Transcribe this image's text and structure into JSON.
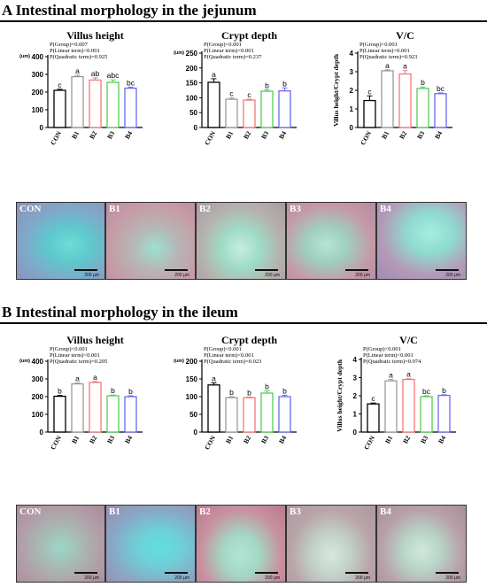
{
  "sections": [
    {
      "title": "A Intestinal morphology in the jejunum",
      "histology": [
        {
          "label": "CON",
          "scale": "200 μm"
        },
        {
          "label": "B1",
          "scale": "200 μm"
        },
        {
          "label": "B2",
          "scale": "200 μm"
        },
        {
          "label": "B3",
          "scale": "200 μm"
        },
        {
          "label": "B4",
          "scale": "200 μm"
        }
      ]
    },
    {
      "title": "B Intestinal morphology in the ileum",
      "histology": [
        {
          "label": "CON",
          "scale": "200 μm"
        },
        {
          "label": "B1",
          "scale": "200 μm"
        },
        {
          "label": "B2",
          "scale": "200 μm"
        },
        {
          "label": "B3",
          "scale": "200 μm"
        },
        {
          "label": "B4",
          "scale": "200 μm"
        }
      ]
    }
  ],
  "colors": {
    "CON": "#000000",
    "B1": "#9a9a9a",
    "B2": "#f07a7a",
    "B3": "#55cc55",
    "B4": "#6a6af0"
  },
  "chart_data": [
    {
      "type": "bar",
      "panel": "jejunum-villus",
      "title": "Villus height",
      "unit": "(um)",
      "ylabel": "",
      "categories": [
        "CON",
        "B1",
        "B2",
        "B3",
        "B4"
      ],
      "values": [
        210,
        287,
        268,
        255,
        222
      ],
      "errors": [
        6,
        8,
        12,
        14,
        6
      ],
      "letters": [
        "c",
        "a",
        "ab",
        "abc",
        "bc"
      ],
      "ylim": [
        0,
        400
      ],
      "yticks": [
        0,
        100,
        200,
        300,
        400
      ],
      "stats": [
        "P(Group)=0.007",
        "P(Linear term)<0.001",
        "P(Quadratic term)=0.925"
      ]
    },
    {
      "type": "bar",
      "panel": "jejunum-crypt",
      "title": "Crypt depth",
      "unit": "(um)",
      "ylabel": "",
      "categories": [
        "CON",
        "B1",
        "B2",
        "B3",
        "B4"
      ],
      "values": [
        152,
        95,
        92,
        122,
        123
      ],
      "errors": [
        12,
        4,
        3,
        5,
        10
      ],
      "letters": [
        "a",
        "c",
        "c",
        "b",
        "b"
      ],
      "ylim": [
        0,
        250
      ],
      "yticks": [
        0,
        50,
        100,
        150,
        200,
        250
      ],
      "stats": [
        "P(Group)<0.001",
        "P(Linear term)<0.001",
        "P(Quadratic term)=0.237"
      ]
    },
    {
      "type": "bar",
      "panel": "jejunum-vc",
      "title": "V/C",
      "unit": "",
      "ylabel": "Villus height/Crypt depth",
      "categories": [
        "CON",
        "B1",
        "B2",
        "B3",
        "B4"
      ],
      "values": [
        1.45,
        3.05,
        2.88,
        2.1,
        1.82
      ],
      "errors": [
        0.25,
        0.05,
        0.18,
        0.08,
        0.04
      ],
      "letters": [
        "c",
        "a",
        "a",
        "b",
        "bc"
      ],
      "ylim": [
        0,
        4
      ],
      "yticks": [
        0,
        1,
        2,
        3,
        4
      ],
      "stats": [
        "P(Group)<0.001",
        "P(Linear term)<0.001",
        "P(Quadratic term)=0.923"
      ]
    },
    {
      "type": "bar",
      "panel": "ileum-villus",
      "title": "Villus height",
      "unit": "(um)",
      "ylabel": "",
      "categories": [
        "CON",
        "B1",
        "B2",
        "B3",
        "B4"
      ],
      "values": [
        202,
        272,
        280,
        205,
        200
      ],
      "errors": [
        5,
        5,
        6,
        4,
        5
      ],
      "letters": [
        "b",
        "a",
        "a",
        "b",
        "b"
      ],
      "ylim": [
        0,
        400
      ],
      "yticks": [
        0,
        100,
        200,
        300,
        400
      ],
      "stats": [
        "P(Group)<0.001",
        "P(Linear term)<0.001",
        "P(Quadratic term)=0.205"
      ]
    },
    {
      "type": "bar",
      "panel": "ileum-crypt",
      "title": "Crypt depth",
      "unit": "(um)",
      "ylabel": "",
      "categories": [
        "CON",
        "B1",
        "B2",
        "B3",
        "B4"
      ],
      "values": [
        133,
        97,
        97,
        110,
        100
      ],
      "errors": [
        6,
        3,
        2,
        6,
        4
      ],
      "letters": [
        "a",
        "b",
        "b",
        "b",
        "b"
      ],
      "ylim": [
        0,
        200
      ],
      "yticks": [
        0,
        50,
        100,
        150,
        200
      ],
      "stats": [
        "P(Group)<0.001",
        "P(Linear term)<0.001",
        "P(Quadratic term)=0.023"
      ]
    },
    {
      "type": "bar",
      "panel": "ileum-vc",
      "title": "V/C",
      "unit": "",
      "ylabel": "Villus height/Crypt depth",
      "categories": [
        "CON",
        "B1",
        "B2",
        "B3",
        "B4"
      ],
      "values": [
        1.55,
        2.82,
        2.9,
        1.95,
        2.02
      ],
      "errors": [
        0.05,
        0.08,
        0.04,
        0.05,
        0.04
      ],
      "letters": [
        "c",
        "a",
        "a",
        "bc",
        "b"
      ],
      "ylim": [
        0,
        4
      ],
      "yticks": [
        0,
        1,
        2,
        3,
        4
      ],
      "stats": [
        "P(Group)<0.001",
        "P(Linear term)<0.001",
        "P(Quadratic term)=0.974"
      ]
    }
  ]
}
